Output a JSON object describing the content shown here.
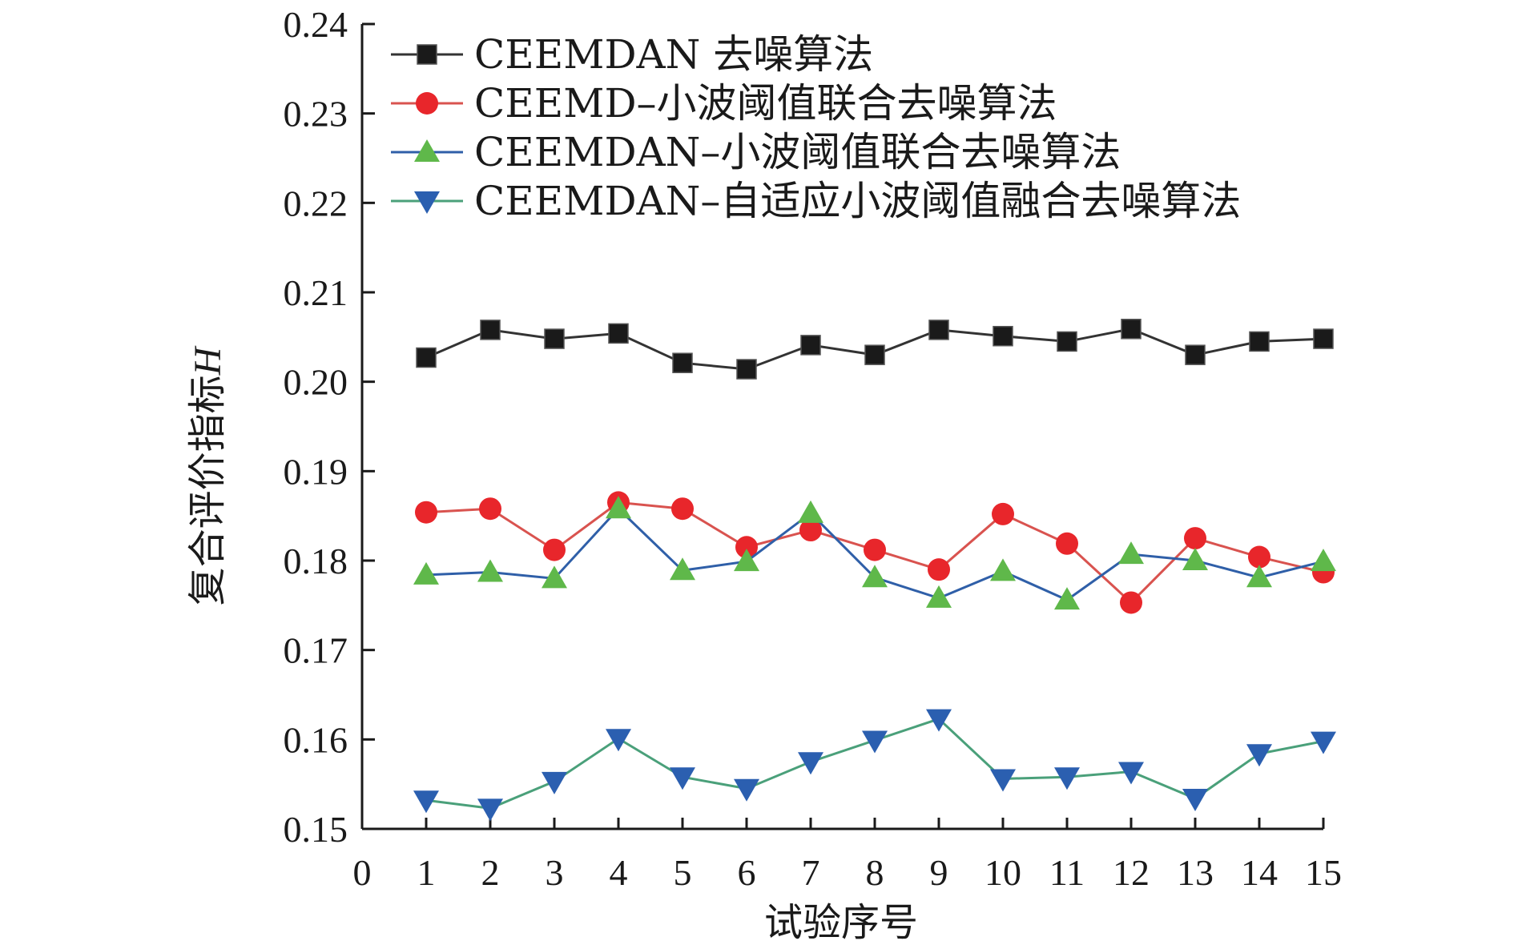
{
  "chart_data": {
    "type": "line",
    "title": "",
    "xlabel": "试验序号",
    "ylabel": "复合评价指标",
    "ylabel_var": "H",
    "xlim": [
      0,
      15
    ],
    "ylim": [
      0.15,
      0.24
    ],
    "xticks": [
      "0",
      "1",
      "2",
      "3",
      "4",
      "5",
      "6",
      "7",
      "8",
      "9",
      "10",
      "11",
      "12",
      "13",
      "14",
      "15"
    ],
    "yticks": [
      "0.15",
      "0.16",
      "0.17",
      "0.18",
      "0.19",
      "0.20",
      "0.21",
      "0.22",
      "0.23",
      "0.24"
    ],
    "x": [
      1,
      2,
      3,
      4,
      5,
      6,
      7,
      8,
      9,
      10,
      11,
      12,
      13,
      14,
      15
    ],
    "legend_position": "top-left",
    "series": [
      {
        "name": "CEEMDAN 去噪算法",
        "marker": "square",
        "line_color": "#333333",
        "marker_color": "#1a1a1a",
        "values": [
          0.2027,
          0.2058,
          0.2048,
          0.2054,
          0.2021,
          0.2014,
          0.2041,
          0.203,
          0.2058,
          0.2051,
          0.2045,
          0.2059,
          0.203,
          0.2045,
          0.2048
        ]
      },
      {
        "name": "CEEMD–小波阈值联合去噪算法",
        "marker": "circle",
        "line_color": "#d9534f",
        "marker_color": "#e8262b",
        "values": [
          0.1854,
          0.1858,
          0.1812,
          0.1865,
          0.1858,
          0.1815,
          0.1834,
          0.1812,
          0.179,
          0.1852,
          0.1819,
          0.1753,
          0.1825,
          0.1804,
          0.1787
        ]
      },
      {
        "name": "CEEMDAN–小波阈值联合去噪算法",
        "marker": "triangle-up",
        "line_color": "#2f5fa8",
        "marker_color": "#5fb84a",
        "values": [
          0.1784,
          0.1787,
          0.178,
          0.1858,
          0.1789,
          0.1799,
          0.1853,
          0.1781,
          0.1758,
          0.1788,
          0.1756,
          0.1807,
          0.18,
          0.1781,
          0.1799
        ]
      },
      {
        "name": "CEEMDAN–自适应小波阈值融合去噪算法",
        "marker": "triangle-down",
        "line_color": "#4aa07a",
        "marker_color": "#2b5fb0",
        "values": [
          0.1532,
          0.1523,
          0.1553,
          0.1601,
          0.1558,
          0.1545,
          0.1575,
          0.1599,
          0.1623,
          0.1556,
          0.1558,
          0.1564,
          0.1534,
          0.1584,
          0.1598
        ]
      }
    ]
  }
}
